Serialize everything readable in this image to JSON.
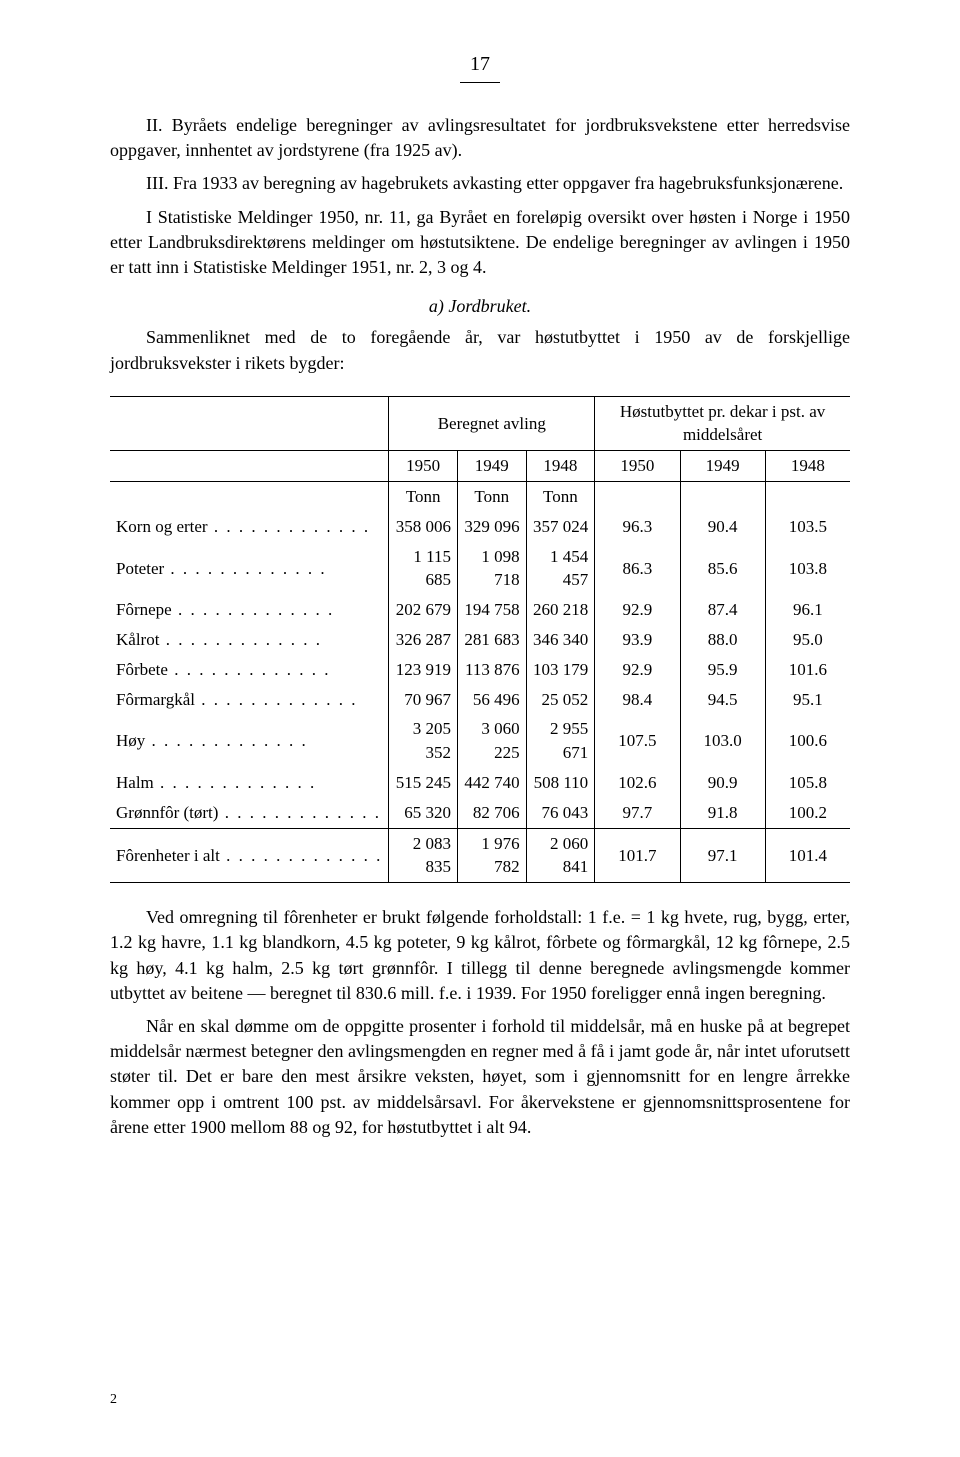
{
  "page_number": "17",
  "para1": "II. Byråets endelige beregninger av avlingsresultatet for jordbruksvekstene etter herredsvise oppgaver, innhentet av jordstyrene (fra 1925 av).",
  "para2": "III. Fra 1933 av beregning av hagebrukets avkasting etter oppgaver fra hagebruksfunksjonærene.",
  "para3": "I Statistiske Meldinger 1950, nr. 11, ga Byrået en foreløpig oversikt over høsten i Norge i 1950 etter Landbruksdirektørens meldinger om høstutsiktene. De endelige beregninger av avlingen i 1950 er tatt inn i Statistiske Meldinger 1951, nr. 2, 3 og 4.",
  "subheading": "a) Jordbruket.",
  "para4": "Sammenliknet med de to foregående år, var høstutbyttet i 1950 av de forskjellige jordbruksvekster i rikets bygder:",
  "table": {
    "header_group1": "Beregnet avling",
    "header_group2": "Høstutbyttet pr. dekar i pst. av middelsåret",
    "years": [
      "1950",
      "1949",
      "1948",
      "1950",
      "1949",
      "1948"
    ],
    "unit_row": [
      "Tonn",
      "Tonn",
      "Tonn",
      "",
      "",
      ""
    ],
    "rows": [
      {
        "label": "Korn og erter",
        "v": [
          "358 006",
          "329 096",
          "357 024",
          "96.3",
          "90.4",
          "103.5"
        ]
      },
      {
        "label": "Poteter",
        "v": [
          "1 115 685",
          "1 098 718",
          "1 454 457",
          "86.3",
          "85.6",
          "103.8"
        ]
      },
      {
        "label": "Fôrnepe",
        "v": [
          "202 679",
          "194 758",
          "260 218",
          "92.9",
          "87.4",
          "96.1"
        ]
      },
      {
        "label": "Kålrot",
        "v": [
          "326 287",
          "281 683",
          "346 340",
          "93.9",
          "88.0",
          "95.0"
        ]
      },
      {
        "label": "Fôrbete",
        "v": [
          "123 919",
          "113 876",
          "103 179",
          "92.9",
          "95.9",
          "101.6"
        ]
      },
      {
        "label": "Fôrmargkål",
        "v": [
          "70 967",
          "56 496",
          "25 052",
          "98.4",
          "94.5",
          "95.1"
        ]
      },
      {
        "label": "Høy",
        "v": [
          "3 205 352",
          "3 060 225",
          "2 955 671",
          "107.5",
          "103.0",
          "100.6"
        ]
      },
      {
        "label": "Halm",
        "v": [
          "515 245",
          "442 740",
          "508 110",
          "102.6",
          "90.9",
          "105.8"
        ]
      },
      {
        "label": "Grønnfôr (tørt)",
        "v": [
          "65 320",
          "82 706",
          "76 043",
          "97.7",
          "91.8",
          "100.2"
        ]
      }
    ],
    "total_row": {
      "label": "Fôrenheter i alt",
      "v": [
        "2 083 835",
        "1 976 782",
        "2 060 841",
        "101.7",
        "97.1",
        "101.4"
      ]
    }
  },
  "para5": "Ved omregning til fôrenheter er brukt følgende forholdstall: 1 f.e. = 1 kg hvete, rug, bygg, erter, 1.2 kg havre, 1.1 kg blandkorn, 4.5 kg poteter, 9 kg kålrot, fôrbete og fôrmargkål, 12 kg fôrnepe, 2.5 kg høy, 4.1 kg halm, 2.5 kg tørt grønnfôr. I tillegg til denne beregnede avlingsmengde kommer utbyttet av beitene — beregnet til 830.6 mill. f.e. i 1939. For 1950 foreligger ennå ingen beregning.",
  "para6": "Når en skal dømme om de oppgitte prosenter i forhold til middelsår, må en huske på at begrepet middelsår nærmest betegner den avlingsmengden en regner med å få i jamt gode år, når intet uforutsett støter til. Det er bare den mest årsikre veksten, høyet, som i gjennomsnitt for en lengre årrekke kommer opp i omtrent 100 pst. av middelsårsavl. For åkervekstene er gjennomsnittsprosentene for årene etter 1900 mellom 88 og 92, for høstutbyttet i alt 94.",
  "footer": "2",
  "colors": {
    "bg": "#ffffff",
    "text": "#000000",
    "rule": "#000000"
  }
}
